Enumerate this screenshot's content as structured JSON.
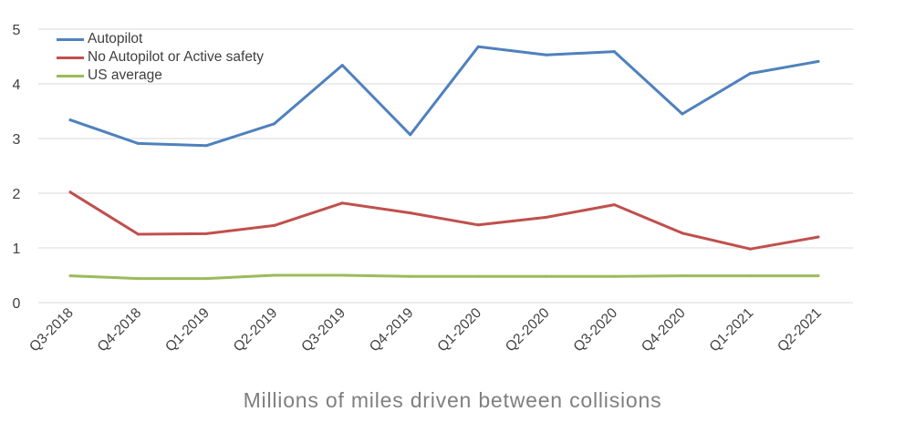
{
  "chart_data": {
    "type": "line",
    "xlabel": "Millions of miles driven between collisions",
    "ylabel": "",
    "ylim": [
      0,
      5
    ],
    "yticks": [
      "0",
      "1",
      "2",
      "3",
      "4",
      "5"
    ],
    "grid": true,
    "legend_position": "top-left",
    "categories": [
      "Q3-2018",
      "Q4-2018",
      "Q1-2019",
      "Q2-2019",
      "Q3-2019",
      "Q4-2019",
      "Q1-2020",
      "Q2-2020",
      "Q3-2020",
      "Q4-2020",
      "Q1-2021",
      "Q2-2021"
    ],
    "series": [
      {
        "name": "Autopilot",
        "color": "#4f81bd",
        "values": [
          3.34,
          2.91,
          2.87,
          3.27,
          4.34,
          3.07,
          4.68,
          4.53,
          4.59,
          3.45,
          4.19,
          4.41
        ]
      },
      {
        "name": "No Autopilot or Active safety",
        "color": "#c0504d",
        "values": [
          2.02,
          1.25,
          1.26,
          1.41,
          1.82,
          1.64,
          1.42,
          1.56,
          1.79,
          1.27,
          0.98,
          1.2
        ]
      },
      {
        "name": "US average",
        "color": "#9bbb59",
        "values": [
          0.49,
          0.44,
          0.44,
          0.5,
          0.5,
          0.48,
          0.48,
          0.48,
          0.48,
          0.49,
          0.49,
          0.49
        ]
      }
    ]
  }
}
